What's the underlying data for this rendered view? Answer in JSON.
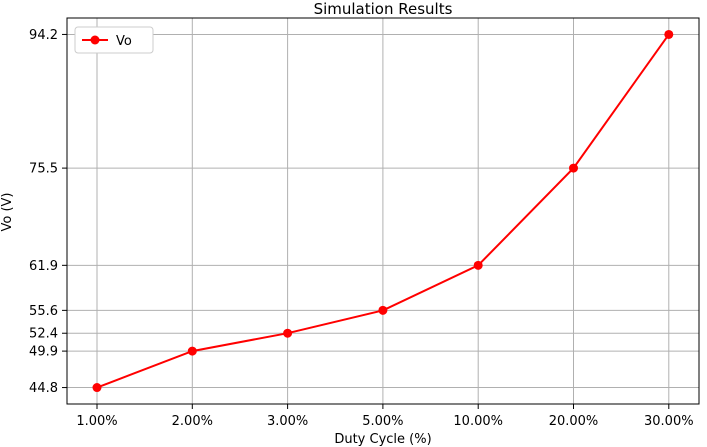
{
  "chart_data": {
    "type": "line",
    "title": "Simulation Results",
    "xlabel": "Duty Cycle (%)",
    "ylabel": "Vo (V)",
    "categories": [
      "1.00%",
      "2.00%",
      "3.00%",
      "5.00%",
      "10.00%",
      "20.00%",
      "30.00%"
    ],
    "y_ticks": [
      "44.8",
      "49.9",
      "52.4",
      "55.6",
      "61.9",
      "75.5",
      "94.2"
    ],
    "series": [
      {
        "name": "Vo",
        "values": [
          44.8,
          49.9,
          52.4,
          55.6,
          61.9,
          75.5,
          94.2
        ],
        "color": "#ff0000"
      }
    ],
    "ylim": [
      42.5,
      96.5
    ],
    "grid": true,
    "legend_position": "top-left"
  }
}
